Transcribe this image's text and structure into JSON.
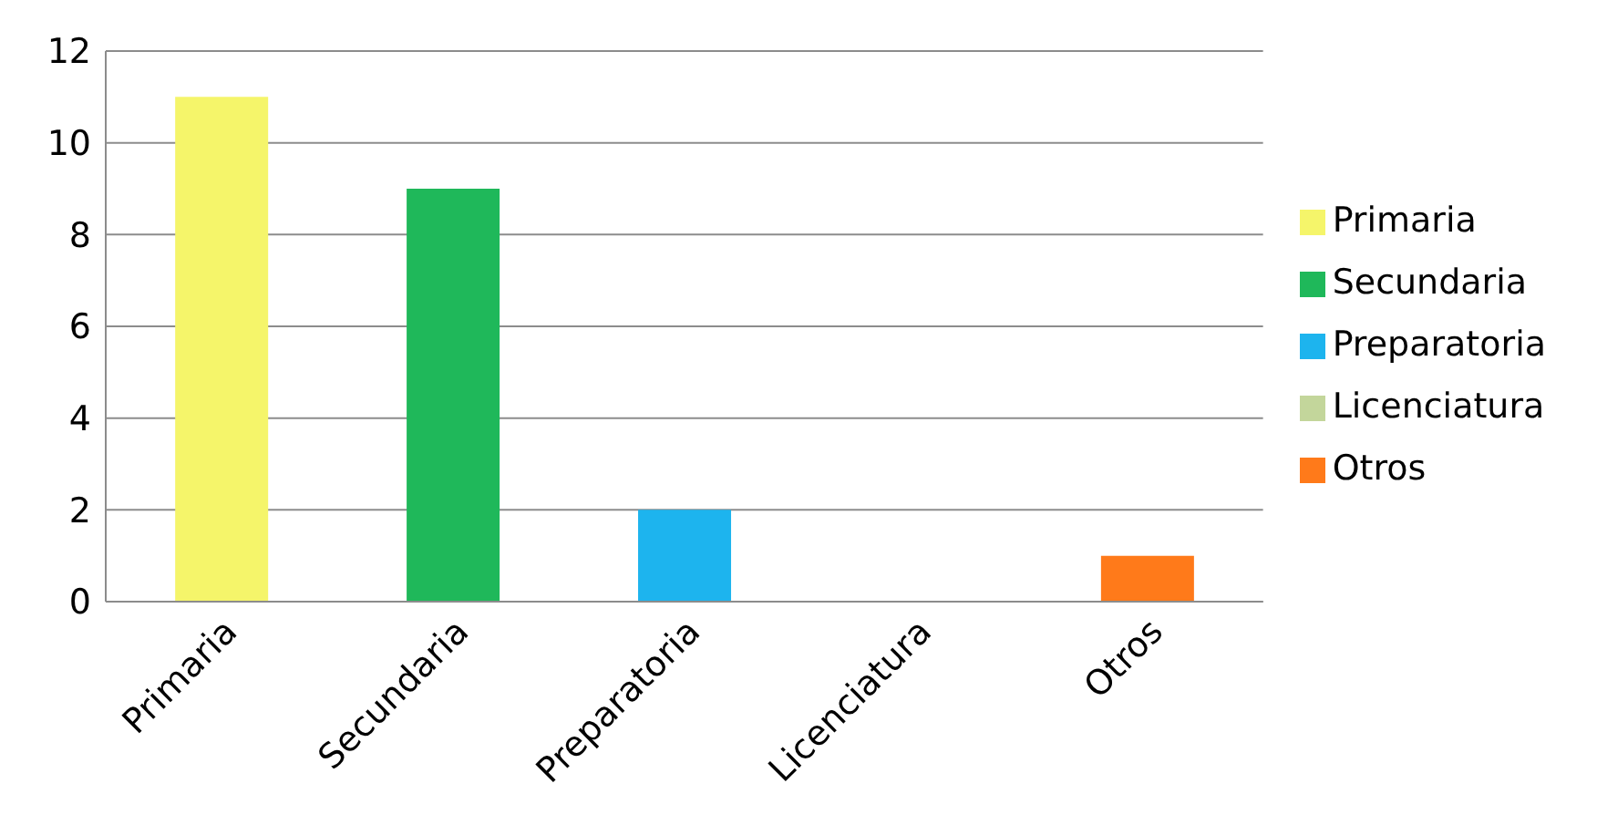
{
  "chart_data": {
    "type": "bar",
    "categories": [
      "Primaria",
      "Secundaria",
      "Preparatoria",
      "Licenciatura",
      "Otros"
    ],
    "series": [
      {
        "name": "Primaria",
        "color": "#f5f56a",
        "values": [
          11,
          null,
          null,
          null,
          null
        ]
      },
      {
        "name": "Secundaria",
        "color": "#1fb85a",
        "values": [
          null,
          9,
          null,
          null,
          null
        ]
      },
      {
        "name": "Preparatoria",
        "color": "#1db4ee",
        "values": [
          null,
          null,
          2,
          null,
          null
        ]
      },
      {
        "name": "Licenciatura",
        "color": "#c3d69b",
        "values": [
          null,
          null,
          null,
          0,
          null
        ]
      },
      {
        "name": "Otros",
        "color": "#ff7a1a",
        "values": [
          null,
          null,
          null,
          null,
          1
        ]
      }
    ],
    "stacked": true,
    "ylim": [
      0,
      12
    ],
    "yticks": [
      0,
      2,
      4,
      6,
      8,
      10,
      12
    ],
    "grid": "y",
    "legend": "right"
  }
}
